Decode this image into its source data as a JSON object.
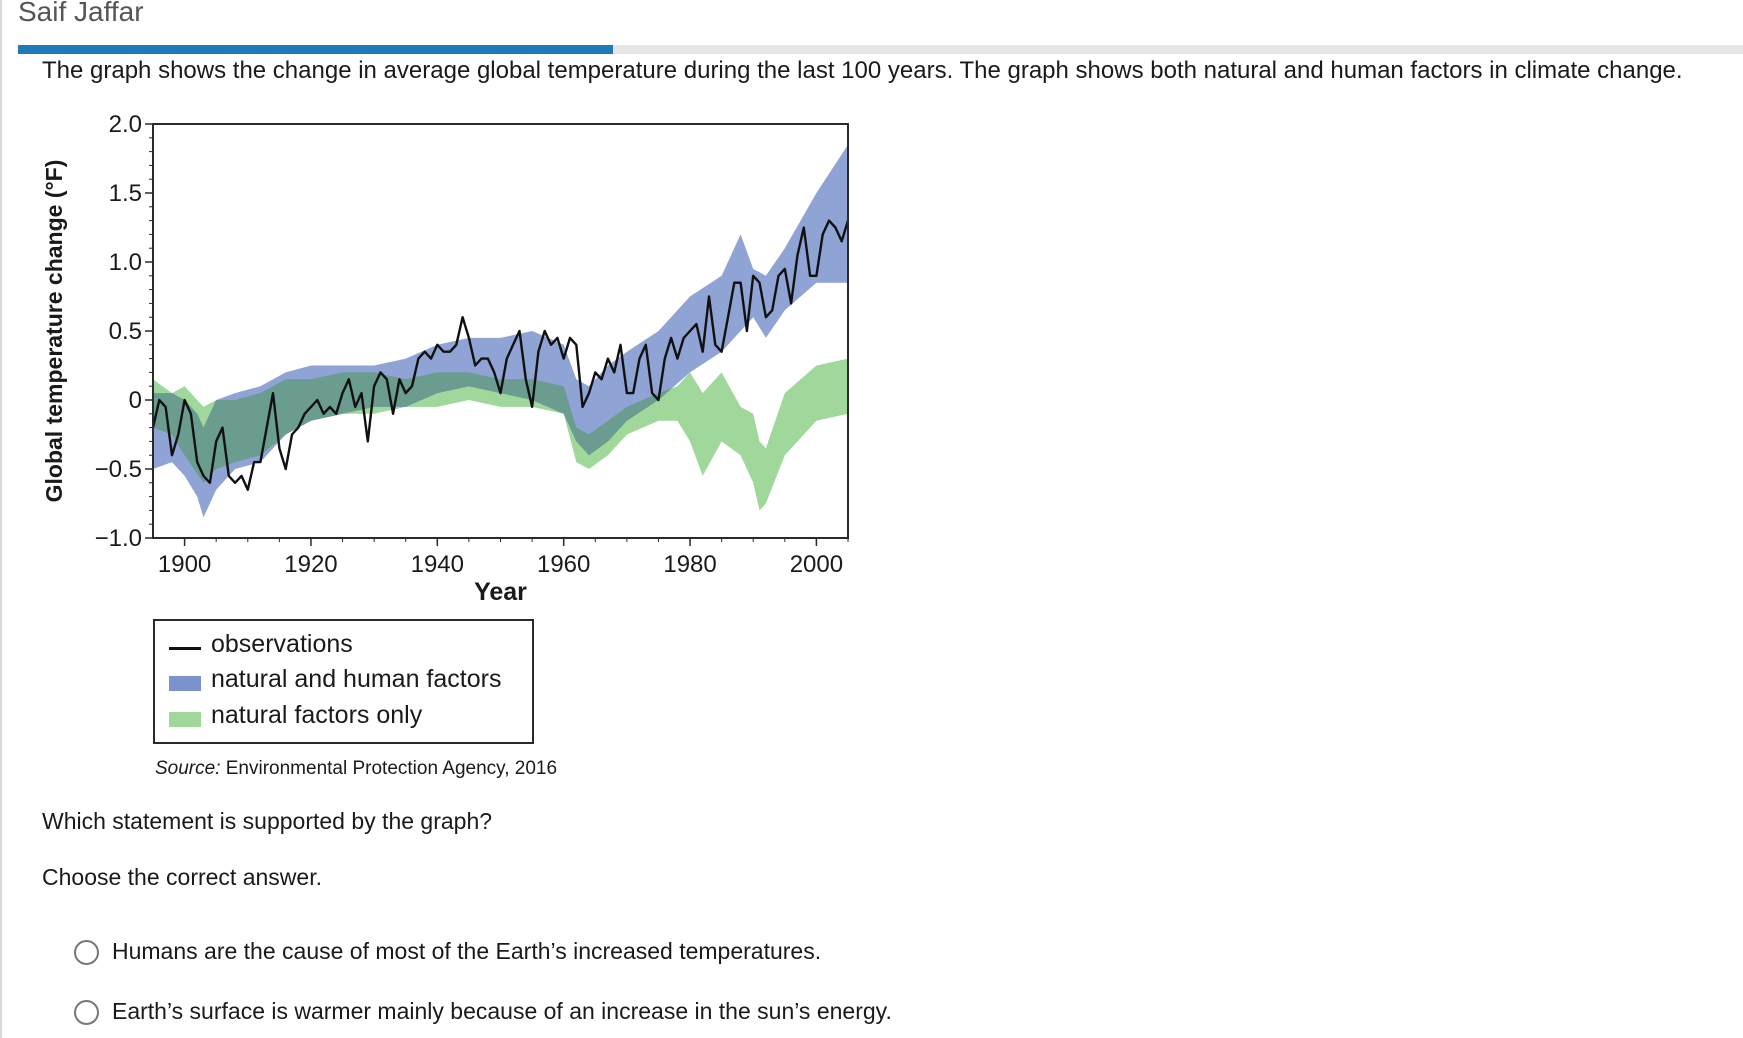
{
  "header": {
    "user_name": "Saif Jaffar",
    "progress_fraction": 0.345
  },
  "prompt": "The graph shows the change in average global temperature during the last 100 years. The graph shows both natural and human factors in climate change.",
  "colors": {
    "observations": "#111111",
    "natural_and_human": "#7b93cc",
    "natural_only": "#9fd89a",
    "overlap": "#6a9d8f",
    "progress": "#1f7ab8"
  },
  "chart_data": {
    "type": "line",
    "title": "",
    "xlabel": "Year",
    "ylabel": "Global temperature change (°F)",
    "xlim": [
      1895,
      2005
    ],
    "ylim": [
      -1.0,
      2.0
    ],
    "x_ticks": [
      1900,
      1920,
      1940,
      1960,
      1980,
      2000
    ],
    "x_tick_labels": [
      "1900",
      "1920",
      "1940",
      "1960",
      "1980",
      "2000"
    ],
    "y_ticks": [
      -1.0,
      -0.5,
      0,
      0.5,
      1.0,
      1.5,
      2.0
    ],
    "y_tick_labels": [
      "−1.0",
      "−0.5",
      "0",
      "0.5",
      "1.0",
      "1.5",
      "2.0"
    ],
    "grid": false,
    "legend": {
      "placement": "below",
      "entries": [
        {
          "label": "observations",
          "kind": "line"
        },
        {
          "label": "natural and human factors",
          "kind": "band"
        },
        {
          "label": "natural factors only",
          "kind": "band"
        }
      ]
    },
    "series": [
      {
        "name": "natural and human factors",
        "kind": "band",
        "x": [
          1895,
          1898,
          1900,
          1902,
          1903,
          1905,
          1908,
          1912,
          1916,
          1920,
          1925,
          1930,
          1935,
          1940,
          1945,
          1950,
          1955,
          1960,
          1962,
          1964,
          1967,
          1970,
          1975,
          1980,
          1985,
          1988,
          1990,
          1992,
          1995,
          2000,
          2005
        ],
        "lower": [
          -0.5,
          -0.45,
          -0.55,
          -0.7,
          -0.85,
          -0.65,
          -0.5,
          -0.45,
          -0.25,
          -0.15,
          -0.1,
          -0.05,
          -0.05,
          0.05,
          0.1,
          0.05,
          0.0,
          -0.1,
          -0.3,
          -0.4,
          -0.3,
          -0.15,
          0.0,
          0.2,
          0.35,
          0.5,
          0.6,
          0.45,
          0.65,
          0.85,
          0.85
        ],
        "upper": [
          0.05,
          0.05,
          0.0,
          -0.1,
          -0.2,
          0.0,
          0.05,
          0.1,
          0.2,
          0.25,
          0.25,
          0.25,
          0.3,
          0.4,
          0.45,
          0.45,
          0.5,
          0.4,
          0.15,
          0.1,
          0.25,
          0.35,
          0.5,
          0.75,
          0.9,
          1.2,
          0.95,
          0.9,
          1.1,
          1.5,
          1.85
        ]
      },
      {
        "name": "natural factors only",
        "kind": "band",
        "x": [
          1895,
          1898,
          1900,
          1903,
          1905,
          1908,
          1912,
          1916,
          1920,
          1925,
          1930,
          1935,
          1940,
          1945,
          1950,
          1955,
          1960,
          1962,
          1964,
          1967,
          1970,
          1975,
          1978,
          1980,
          1982,
          1985,
          1988,
          1990,
          1991,
          1992,
          1995,
          2000,
          2005
        ],
        "lower": [
          -0.2,
          -0.25,
          -0.4,
          -0.6,
          -0.5,
          -0.45,
          -0.4,
          -0.25,
          -0.15,
          -0.1,
          -0.1,
          -0.05,
          -0.05,
          0.0,
          -0.05,
          -0.05,
          -0.1,
          -0.45,
          -0.5,
          -0.4,
          -0.25,
          -0.15,
          -0.15,
          -0.3,
          -0.55,
          -0.3,
          -0.4,
          -0.6,
          -0.8,
          -0.75,
          -0.4,
          -0.15,
          -0.1
        ],
        "upper": [
          0.15,
          0.05,
          0.1,
          -0.05,
          0.0,
          0.0,
          0.05,
          0.15,
          0.15,
          0.2,
          0.2,
          0.15,
          0.2,
          0.2,
          0.15,
          0.15,
          0.1,
          -0.2,
          -0.25,
          -0.15,
          -0.05,
          0.05,
          0.1,
          0.2,
          0.05,
          0.2,
          -0.05,
          -0.1,
          -0.3,
          -0.35,
          0.05,
          0.25,
          0.3
        ]
      },
      {
        "name": "observations",
        "kind": "line",
        "x": [
          1895,
          1896,
          1897,
          1898,
          1899,
          1900,
          1901,
          1902,
          1903,
          1904,
          1905,
          1906,
          1907,
          1908,
          1909,
          1910,
          1911,
          1912,
          1913,
          1914,
          1915,
          1916,
          1917,
          1918,
          1919,
          1920,
          1921,
          1922,
          1923,
          1924,
          1925,
          1926,
          1927,
          1928,
          1929,
          1930,
          1931,
          1932,
          1933,
          1934,
          1935,
          1936,
          1937,
          1938,
          1939,
          1940,
          1941,
          1942,
          1943,
          1944,
          1945,
          1946,
          1947,
          1948,
          1949,
          1950,
          1951,
          1952,
          1953,
          1954,
          1955,
          1956,
          1957,
          1958,
          1959,
          1960,
          1961,
          1962,
          1963,
          1964,
          1965,
          1966,
          1967,
          1968,
          1969,
          1970,
          1971,
          1972,
          1973,
          1974,
          1975,
          1976,
          1977,
          1978,
          1979,
          1980,
          1981,
          1982,
          1983,
          1984,
          1985,
          1986,
          1987,
          1988,
          1989,
          1990,
          1991,
          1992,
          1993,
          1994,
          1995,
          1996,
          1997,
          1998,
          1999,
          2000,
          2001,
          2002,
          2003,
          2004,
          2005
        ],
        "y": [
          -0.2,
          0.0,
          -0.05,
          -0.4,
          -0.25,
          0.0,
          -0.1,
          -0.45,
          -0.55,
          -0.6,
          -0.3,
          -0.2,
          -0.55,
          -0.6,
          -0.55,
          -0.65,
          -0.45,
          -0.45,
          -0.2,
          0.05,
          -0.35,
          -0.5,
          -0.25,
          -0.2,
          -0.1,
          -0.05,
          0.0,
          -0.1,
          -0.05,
          -0.1,
          0.05,
          0.15,
          -0.05,
          0.05,
          -0.3,
          0.1,
          0.2,
          0.15,
          -0.1,
          0.15,
          0.05,
          0.1,
          0.3,
          0.35,
          0.3,
          0.4,
          0.35,
          0.35,
          0.4,
          0.6,
          0.45,
          0.25,
          0.3,
          0.3,
          0.2,
          0.05,
          0.3,
          0.4,
          0.5,
          0.15,
          -0.05,
          0.35,
          0.5,
          0.4,
          0.45,
          0.3,
          0.45,
          0.4,
          -0.05,
          0.05,
          0.2,
          0.15,
          0.3,
          0.2,
          0.4,
          0.05,
          0.05,
          0.3,
          0.4,
          0.05,
          0.0,
          0.3,
          0.45,
          0.3,
          0.45,
          0.5,
          0.55,
          0.35,
          0.75,
          0.4,
          0.35,
          0.6,
          0.85,
          0.85,
          0.5,
          0.9,
          0.85,
          0.6,
          0.65,
          0.9,
          0.95,
          0.7,
          1.05,
          1.25,
          0.9,
          0.9,
          1.2,
          1.3,
          1.25,
          1.15,
          1.3
        ]
      }
    ]
  },
  "source": {
    "label": "Source:",
    "text": " Environmental Protection Agency, 2016"
  },
  "question": "Which statement is supported by the graph?",
  "instruction": "Choose the correct answer.",
  "choices": [
    {
      "text": "Humans are the cause of most of the Earth’s increased temperatures."
    },
    {
      "text": "Earth’s surface is warmer mainly because of an increase in the sun’s energy."
    }
  ]
}
